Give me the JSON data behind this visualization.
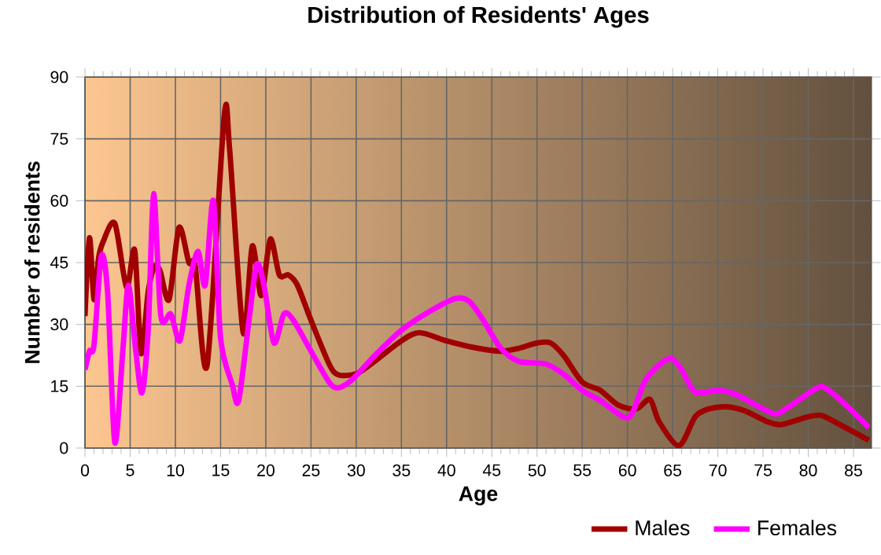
{
  "chart_data": {
    "type": "line",
    "title": "Distribution of Residents' Ages",
    "xlabel": "Age",
    "ylabel": "Number of residents",
    "xlim": [
      0,
      87
    ],
    "xticks": [
      0,
      5,
      10,
      15,
      20,
      25,
      30,
      35,
      40,
      45,
      50,
      55,
      60,
      65,
      70,
      75,
      80,
      85
    ],
    "ylim": [
      0,
      90
    ],
    "yticks": [
      0,
      15,
      30,
      45,
      60,
      75,
      90
    ],
    "grid": true,
    "legend": "bottom",
    "line_style": "solid",
    "series": [
      {
        "name": "Males",
        "color": "#a00000",
        "x": [
          0,
          0.5,
          1,
          1.5,
          2,
          3.3,
          4.6,
          5.5,
          6.2,
          7,
          7.7,
          8.3,
          9.3,
          10.4,
          11.5,
          12.2,
          13.5,
          15.4,
          16,
          17.5,
          18.5,
          19.5,
          20.5,
          21.5,
          22.5,
          23.5,
          25,
          27,
          28,
          30,
          32,
          35,
          37,
          40,
          43,
          46,
          48,
          50,
          51.5,
          53,
          55,
          57,
          59,
          61,
          62.5,
          63.5,
          65.7,
          67.5,
          69,
          71,
          73,
          75.5,
          77,
          80,
          81.5,
          83.5,
          86.7
        ],
        "values": [
          32,
          51,
          36,
          46,
          50,
          54.5,
          39,
          48,
          23,
          38,
          44,
          43,
          36,
          53.5,
          45,
          44,
          20,
          80.5,
          72.5,
          28,
          49,
          37,
          50.7,
          42,
          42,
          39.5,
          31,
          20.4,
          17.8,
          18,
          21,
          26,
          28,
          26,
          24.4,
          23.5,
          24.2,
          25.5,
          25.5,
          22.3,
          16,
          14,
          10.4,
          9.5,
          11.8,
          6.4,
          0.6,
          7.6,
          9.5,
          10,
          9,
          6.4,
          5.7,
          7.6,
          7.9,
          5.7,
          1.9
        ]
      },
      {
        "name": "Females",
        "color": "#ff00ff",
        "x": [
          0,
          0.5,
          1,
          1.8,
          2.5,
          3.3,
          4.2,
          4.8,
          5.6,
          6.3,
          7,
          7.6,
          8.4,
          9.5,
          10.5,
          11.5,
          12.5,
          13.3,
          14.2,
          15,
          16.3,
          17,
          18.2,
          19,
          19.8,
          20.9,
          22,
          23,
          25,
          27,
          28,
          29.5,
          32,
          35,
          38,
          41,
          42.5,
          44,
          46,
          48,
          51,
          53,
          55,
          57,
          59.5,
          60.5,
          62,
          64,
          65,
          66,
          67.5,
          70,
          72,
          75,
          76.5,
          78,
          81,
          82,
          84,
          86.7
        ],
        "values": [
          19,
          23.5,
          25,
          46.5,
          38,
          1.3,
          24,
          39.5,
          24,
          13.4,
          29,
          61.7,
          32,
          32.5,
          26,
          39.5,
          47.7,
          39.5,
          60,
          26.7,
          15.3,
          11.5,
          32,
          44.6,
          39.5,
          25.5,
          32.5,
          31.2,
          23.5,
          16,
          14.6,
          16.5,
          22.3,
          28.6,
          33,
          36.3,
          35.6,
          31.2,
          24.2,
          21,
          20.4,
          17.8,
          14,
          11.5,
          7.6,
          8.3,
          16.5,
          21,
          21.6,
          19,
          13.6,
          14,
          13,
          9.5,
          8.3,
          10.2,
          14.6,
          14.4,
          10.8,
          5
        ]
      }
    ]
  }
}
